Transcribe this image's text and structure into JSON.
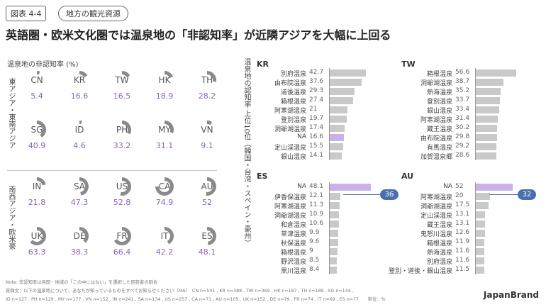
{
  "header": {
    "figure_label": "図表 4-4",
    "tag": "地方の観光資源",
    "title": "英語圏・欧米文化圏では温泉地の「非認知率」が近隣アジアを大幅に上回る"
  },
  "left_panel": {
    "heading": "温泉地の非認知率 (%)",
    "group1_label": "東アジア・東南アジア",
    "group2_label": "南西アジア・欧米豪"
  },
  "right_panel": {
    "vertical_label": "温泉地の認知率 上位10位（韓国・台湾・スペイン・豪州）"
  },
  "chart_data": [
    {
      "type": "pie",
      "title": "温泉地の非認知率 (%)",
      "group": "東アジア・東南アジア",
      "items": [
        {
          "code": "CN",
          "value": "5.4"
        },
        {
          "code": "KR",
          "value": "16.6"
        },
        {
          "code": "TW",
          "value": "16.5"
        },
        {
          "code": "HK",
          "value": "18.9"
        },
        {
          "code": "TH",
          "value": "28.2"
        },
        {
          "code": "SG",
          "value": "40.9"
        },
        {
          "code": "ID",
          "value": "4.6"
        },
        {
          "code": "PH",
          "value": "33.2"
        },
        {
          "code": "MY",
          "value": "31.1"
        },
        {
          "code": "VN",
          "value": "9.1"
        }
      ]
    },
    {
      "type": "pie",
      "title": "温泉地の非認知率 (%)",
      "group": "南西アジア・欧米豪",
      "items": [
        {
          "code": "IN",
          "value": "21.8"
        },
        {
          "code": "SA",
          "value": "47.3"
        },
        {
          "code": "US",
          "value": "52.8"
        },
        {
          "code": "CA",
          "value": "74.9"
        },
        {
          "code": "AU",
          "value": "52"
        },
        {
          "code": "UK",
          "value": "63.3"
        },
        {
          "code": "DE",
          "value": "38.3"
        },
        {
          "code": "FR",
          "value": "66.4"
        },
        {
          "code": "IT",
          "value": "42.2"
        },
        {
          "code": "ES",
          "value": "48.1"
        }
      ]
    },
    {
      "type": "bar",
      "title": "KR",
      "categories": [
        "別府温泉",
        "由布院温泉",
        "道後温泉",
        "箱根温泉",
        "阿寒湖温泉",
        "登別温泉",
        "洞爺湖温泉",
        "NA",
        "定山渓温泉",
        "銀山温泉"
      ],
      "values": [
        "42.7",
        "37.6",
        "29.3",
        "27.4",
        "21",
        "19.7",
        "17.4",
        "16.6",
        "15.5",
        "14.1"
      ],
      "highlight_index": 7
    },
    {
      "type": "bar",
      "title": "TW",
      "categories": [
        "箱根温泉",
        "洞爺湖温泉",
        "熱海温泉",
        "登別温泉",
        "銀山温泉",
        "阿寒湖温泉",
        "蔵王温泉",
        "由布院温泉",
        "有馬温泉",
        "加賀温泉郷"
      ],
      "values": [
        "56.6",
        "38.7",
        "35.2",
        "33.7",
        "33.4",
        "31.4",
        "30.2",
        "29.8",
        "29.2",
        "28.6"
      ],
      "highlight_index": -1
    },
    {
      "type": "bar",
      "title": "ES",
      "categories": [
        "NA",
        "伊香保温泉",
        "阿寒湖温泉",
        "洞爺湖温泉",
        "和倉温泉",
        "草津温泉",
        "秋保温泉",
        "箱根温泉",
        "野沢温泉",
        "黒川温泉"
      ],
      "values": [
        "48.1",
        "12.1",
        "11.3",
        "10.9",
        "10.6",
        "9.9",
        "9.6",
        "9",
        "8.5",
        "8.4"
      ],
      "highlight_index": 0,
      "callout": "36"
    },
    {
      "type": "bar",
      "title": "AU",
      "categories": [
        "NA",
        "阿寒湖温泉",
        "洞爺湖温泉",
        "定山渓温泉",
        "蔵王温泉",
        "鬼怒川温泉",
        "箱根温泉",
        "熱海温泉",
        "別府温泉",
        "登別・道後・銀山温泉"
      ],
      "values": [
        "52",
        "20",
        "17.5",
        "13.1",
        "13.1",
        "12.6",
        "11.9",
        "11.6",
        "11.6",
        "11.5"
      ],
      "highlight_index": 0,
      "callout": "32"
    }
  ],
  "notes": {
    "line1": "Note: 非認知率は各国・地域の「この中にはない」を選択した回答者の割合",
    "line2": "質問文：以下の温泉地について、あなたが知っているものをすべてお知らせください（MA）　CN n=501 , KR n=388 , TW n=369 , HK n=187 , TH n=189 , SG n=144 ,",
    "line3": "ID n=127 , PH n=129 , MY n=177 , VN n=152 , IN n=241 , SA n=134 , US n=257 , CA n=71 , AU n=105 , UK n=152 , DE n=79 , FR n=74 , IT n=69 , ES n=77　　単位：%"
  },
  "brand": "JapanBrand",
  "colors": {
    "pie": "#8a8a8a",
    "value_text": "#8b63c4",
    "bar": "#c9c9c9",
    "highlight": "#c7b3e9",
    "callout": "#4a70ad"
  }
}
